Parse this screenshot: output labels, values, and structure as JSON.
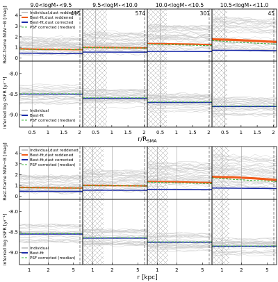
{
  "panel_titles": [
    "9.0<logM⋆<9.5",
    "9.5<logM⋆<10.0",
    "10.0<logM⋆<10.5",
    "10.5<logM⋆<11.0"
  ],
  "counts": [
    "415",
    "574",
    "301",
    "45"
  ],
  "ylabel_color": "Rest-frame NUV−B [mag]",
  "ylabel_ssfr": "Inferred log sSFR [yr⁻¹]",
  "xlabel_top": "r/R_SMA",
  "xlabel_bottom": "r [kpc]",
  "legend_color": [
    "Individual,dust reddened",
    "Best-fit,dust reddened",
    "Best-fit,dust corrected",
    "PSF corrected (median)"
  ],
  "legend_ssfr": [
    "Individual",
    "Best-fit",
    "PSF corrected (median)"
  ],
  "colors": {
    "individual": "#c8c8c8",
    "reddened": "#f05a1a",
    "corrected": "#1a2aa8",
    "psf": "#3cb43c",
    "hatch": "#9a9a9a"
  },
  "chart_data": [
    {
      "type": "line",
      "block": "top",
      "x_axis": "r/R_SMA",
      "xlim": [
        0.1,
        2.1
      ],
      "x_ticks": [
        "0.5",
        "1",
        "1.5",
        "2"
      ],
      "x_tick_values": [
        0.5,
        1.0,
        1.5,
        2.0
      ],
      "color_yticks": [
        "0",
        "1",
        "2",
        "3",
        "4"
      ],
      "color_ylim": [
        -0.3,
        4.6
      ],
      "ssfr_yticks": [
        "-8.0",
        "-8.5",
        "-9.0"
      ],
      "ssfr_ylim": [
        -9.3,
        -7.7
      ],
      "panels": [
        {
          "title_index": 0,
          "reddened": [
            0.85,
            0.82,
            0.8,
            0.78
          ],
          "corrected": [
            0.45,
            0.44,
            0.43,
            0.43
          ],
          "psf": [
            0.82,
            0.8,
            0.79,
            0.77
          ],
          "ssfr": [
            -8.5,
            -8.5,
            -8.5,
            -8.5
          ]
        },
        {
          "title_index": 1,
          "reddened": [
            1.0,
            0.98,
            0.96,
            0.94
          ],
          "corrected": [
            0.55,
            0.55,
            0.54,
            0.54
          ],
          "psf": [
            0.98,
            0.96,
            0.95,
            0.93
          ],
          "ssfr": [
            -8.6,
            -8.6,
            -8.6,
            -8.6
          ]
        },
        {
          "title_index": 2,
          "reddened": [
            1.35,
            1.33,
            1.3,
            1.25
          ],
          "corrected": [
            0.62,
            0.62,
            0.61,
            0.6
          ],
          "psf": [
            1.3,
            1.25,
            1.2,
            1.15
          ],
          "ssfr": [
            -8.7,
            -8.7,
            -8.7,
            -8.7
          ]
        },
        {
          "title_index": 3,
          "reddened": [
            1.75,
            1.7,
            1.6,
            1.5
          ],
          "corrected": [
            0.72,
            0.71,
            0.7,
            0.68
          ],
          "psf": [
            1.65,
            1.5,
            1.4,
            1.3
          ],
          "ssfr": [
            -8.8,
            -8.8,
            -8.8,
            -8.8
          ]
        }
      ]
    },
    {
      "type": "line",
      "block": "bottom",
      "x_axis": "r [kpc]",
      "x_scale": "log",
      "xlim": [
        0.7,
        7.0
      ],
      "x_ticks": [
        "1",
        "2",
        "5"
      ],
      "x_tick_values": [
        1,
        2,
        5
      ],
      "color_yticks": [
        "0",
        "1",
        "2",
        "3",
        "4"
      ],
      "color_ylim": [
        -0.3,
        4.6
      ],
      "ssfr_yticks": [
        "-8.0",
        "-8.5",
        "-9.0"
      ],
      "ssfr_ylim": [
        -9.3,
        -7.7
      ],
      "panels": [
        {
          "title_index": 0,
          "reddened": [
            0.8,
            0.78,
            0.76,
            0.75
          ],
          "corrected": [
            0.45,
            0.44,
            0.44,
            0.43
          ],
          "psf": [
            0.78,
            0.76,
            0.75,
            0.74
          ],
          "ssfr": [
            -8.55,
            -8.55,
            -8.55,
            -8.55
          ]
        },
        {
          "title_index": 1,
          "reddened": [
            1.0,
            0.99,
            0.97,
            0.95
          ],
          "corrected": [
            0.55,
            0.55,
            0.54,
            0.54
          ],
          "psf": [
            0.98,
            0.97,
            0.95,
            0.93
          ],
          "ssfr": [
            -8.65,
            -8.65,
            -8.65,
            -8.65
          ]
        },
        {
          "title_index": 2,
          "reddened": [
            1.35,
            1.33,
            1.3,
            1.25
          ],
          "corrected": [
            0.62,
            0.62,
            0.61,
            0.6
          ],
          "psf": [
            1.3,
            1.25,
            1.2,
            1.15
          ],
          "ssfr": [
            -8.75,
            -8.75,
            -8.75,
            -8.75
          ]
        },
        {
          "title_index": 3,
          "reddened": [
            1.78,
            1.75,
            1.65,
            1.5
          ],
          "corrected": [
            0.75,
            0.74,
            0.72,
            0.7
          ],
          "psf": [
            1.7,
            1.55,
            1.45,
            1.35
          ],
          "ssfr": [
            -8.85,
            -8.85,
            -8.85,
            -8.85
          ]
        }
      ]
    }
  ]
}
